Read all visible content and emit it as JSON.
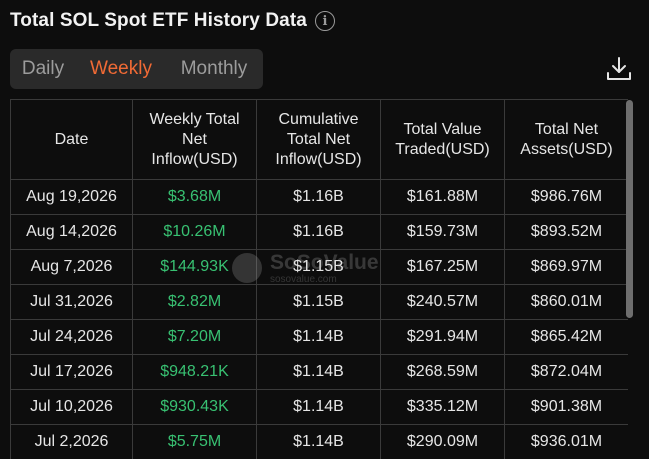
{
  "header": {
    "title": "Total SOL Spot ETF History Data",
    "info_icon": "info-icon"
  },
  "tabs": [
    {
      "label": "Daily",
      "active": false
    },
    {
      "label": "Weekly",
      "active": true
    },
    {
      "label": "Monthly",
      "active": false
    }
  ],
  "accent_color": "#f06a35",
  "positive_color": "#38c172",
  "download_icon": "download-icon",
  "table": {
    "columns": [
      "Date",
      "Weekly Total Net Inflow(USD)",
      "Cumulative Total Net Inflow(USD)",
      "Total Value Traded(USD)",
      "Total Net Assets(USD)"
    ],
    "rows": [
      [
        "Aug 19,2026",
        "$3.68M",
        "$1.16B",
        "$161.88M",
        "$986.76M"
      ],
      [
        "Aug 14,2026",
        "$10.26M",
        "$1.16B",
        "$159.73M",
        "$893.52M"
      ],
      [
        "Aug 7,2026",
        "$144.93K",
        "$1.15B",
        "$167.25M",
        "$869.97M"
      ],
      [
        "Jul 31,2026",
        "$2.82M",
        "$1.15B",
        "$240.57M",
        "$860.01M"
      ],
      [
        "Jul 24,2026",
        "$7.20M",
        "$1.14B",
        "$291.94M",
        "$865.42M"
      ],
      [
        "Jul 17,2026",
        "$948.21K",
        "$1.14B",
        "$268.59M",
        "$872.04M"
      ],
      [
        "Jul 10,2026",
        "$930.43K",
        "$1.14B",
        "$335.12M",
        "$901.38M"
      ],
      [
        "Jul 2,2026",
        "$5.75M",
        "$1.14B",
        "$290.09M",
        "$936.01M"
      ]
    ]
  },
  "watermark": {
    "main": "SoSoValue",
    "sub": "sosovalue.com"
  }
}
